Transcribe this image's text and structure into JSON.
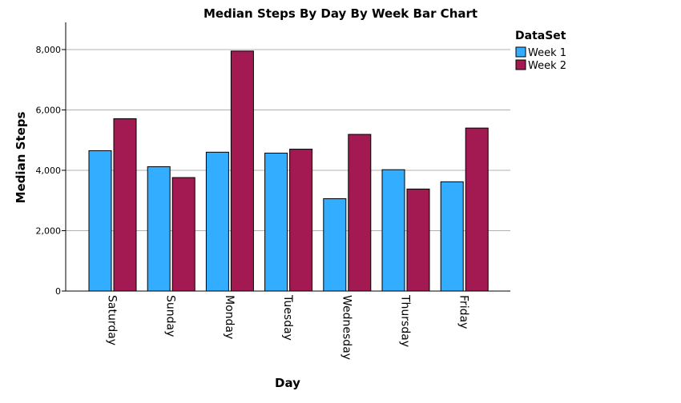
{
  "chart_data": {
    "type": "bar",
    "title": "Median Steps By Day By Week Bar Chart",
    "xlabel": "Day",
    "ylabel": "Median Steps",
    "categories": [
      "Saturday",
      "Sunday",
      "Monday",
      "Tuesday",
      "Wednesday",
      "Thursday",
      "Friday"
    ],
    "series": [
      {
        "name": "Week 1",
        "color": "#33adff",
        "values": [
          4650,
          4120,
          4600,
          4570,
          3060,
          4020,
          3620
        ]
      },
      {
        "name": "Week 2",
        "color": "#a31a52",
        "values": [
          5710,
          3760,
          7950,
          4700,
          5190,
          3380,
          5400
        ]
      }
    ],
    "ylim": [
      0,
      8900
    ],
    "yticks": [
      0,
      2000,
      4000,
      6000,
      8000
    ],
    "ytick_labels": [
      "0",
      "2,000",
      "4,000",
      "6,000",
      "8,000"
    ],
    "grid": true,
    "legend": {
      "title": "DataSet",
      "position": "top-right"
    }
  }
}
